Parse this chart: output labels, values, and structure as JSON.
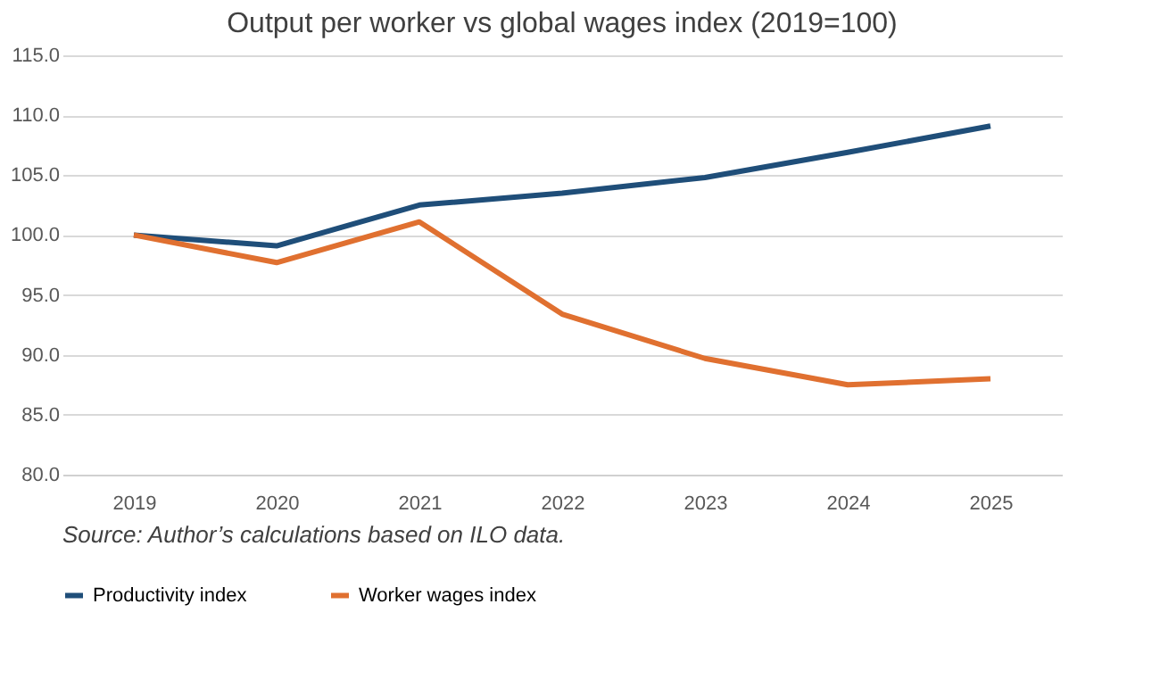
{
  "chart_data": {
    "type": "line",
    "title": "Output per worker vs global wages index (2019=100)",
    "categories": [
      "2019",
      "2020",
      "2021",
      "2022",
      "2023",
      "2024",
      "2025"
    ],
    "series": [
      {
        "name": "Productivity index",
        "color": "#1f4e79",
        "values": [
          100,
          99.1,
          102.5,
          103.5,
          104.8,
          106.9,
          109.1
        ]
      },
      {
        "name": "Worker wages index",
        "color": "#e07030",
        "values": [
          100,
          97.7,
          101.1,
          93.4,
          89.7,
          87.5,
          88.0
        ]
      }
    ],
    "ylim": [
      80,
      115
    ],
    "yticks": [
      {
        "value": 80,
        "label": "80.0"
      },
      {
        "value": 85,
        "label": "85.0"
      },
      {
        "value": 90,
        "label": "90.0"
      },
      {
        "value": 95,
        "label": "95.0"
      },
      {
        "value": 100,
        "label": "100.0"
      },
      {
        "value": 105,
        "label": "105.0"
      },
      {
        "value": 110,
        "label": "110.0"
      },
      {
        "value": 115,
        "label": "115.0"
      }
    ],
    "grid": "y",
    "legend": "bottom",
    "marker": "none",
    "line_style": "solid",
    "annotations": [
      "Source: Author’s calculations based on ILO data."
    ]
  }
}
